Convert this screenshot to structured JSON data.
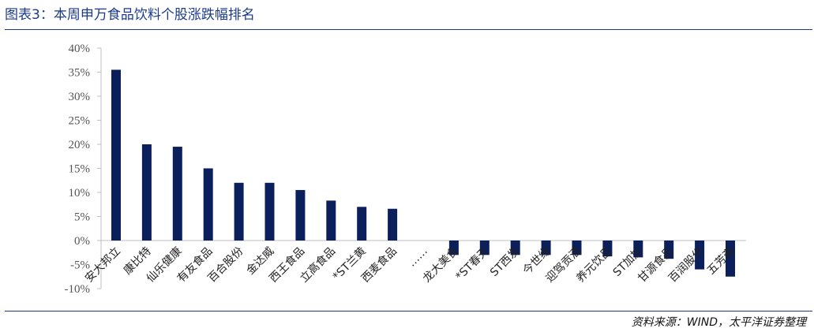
{
  "title": "图表3：本周申万食品饮料个股涨跌幅排名",
  "source": "资料来源：WIND，太平洋证券整理",
  "colors": {
    "bar": "#0b1f5c",
    "axis": "#bfbfbf",
    "accent": "#1a3a8c"
  },
  "chart_data": {
    "type": "bar",
    "title": "",
    "xlabel": "",
    "ylabel": "",
    "ylim": [
      -0.1,
      0.4
    ],
    "yticks": [
      "40%",
      "35%",
      "30%",
      "25%",
      "20%",
      "15%",
      "10%",
      "5%",
      "0%",
      "-5%",
      "-10%"
    ],
    "ytick_values": [
      0.4,
      0.35,
      0.3,
      0.25,
      0.2,
      0.15,
      0.1,
      0.05,
      0.0,
      -0.05,
      -0.1
    ],
    "grid": false,
    "categories": [
      "安大邦立",
      "康比特",
      "仙乐健康",
      "有友食品",
      "百合股份",
      "金达威",
      "西王食品",
      "立高食品",
      "*ST兰黄",
      "西麦食品",
      "……",
      "龙大美食",
      "*ST春天",
      "ST西发",
      "今世缘",
      "迎驾贡酒",
      "养元饮品",
      "ST加加",
      "甘源食品",
      "百润股份",
      "五芳斋"
    ],
    "values": [
      0.355,
      0.2,
      0.195,
      0.15,
      0.12,
      0.12,
      0.105,
      0.083,
      0.07,
      0.066,
      null,
      -0.03,
      -0.03,
      -0.03,
      -0.03,
      -0.03,
      -0.033,
      -0.035,
      -0.038,
      -0.06,
      -0.075
    ]
  }
}
